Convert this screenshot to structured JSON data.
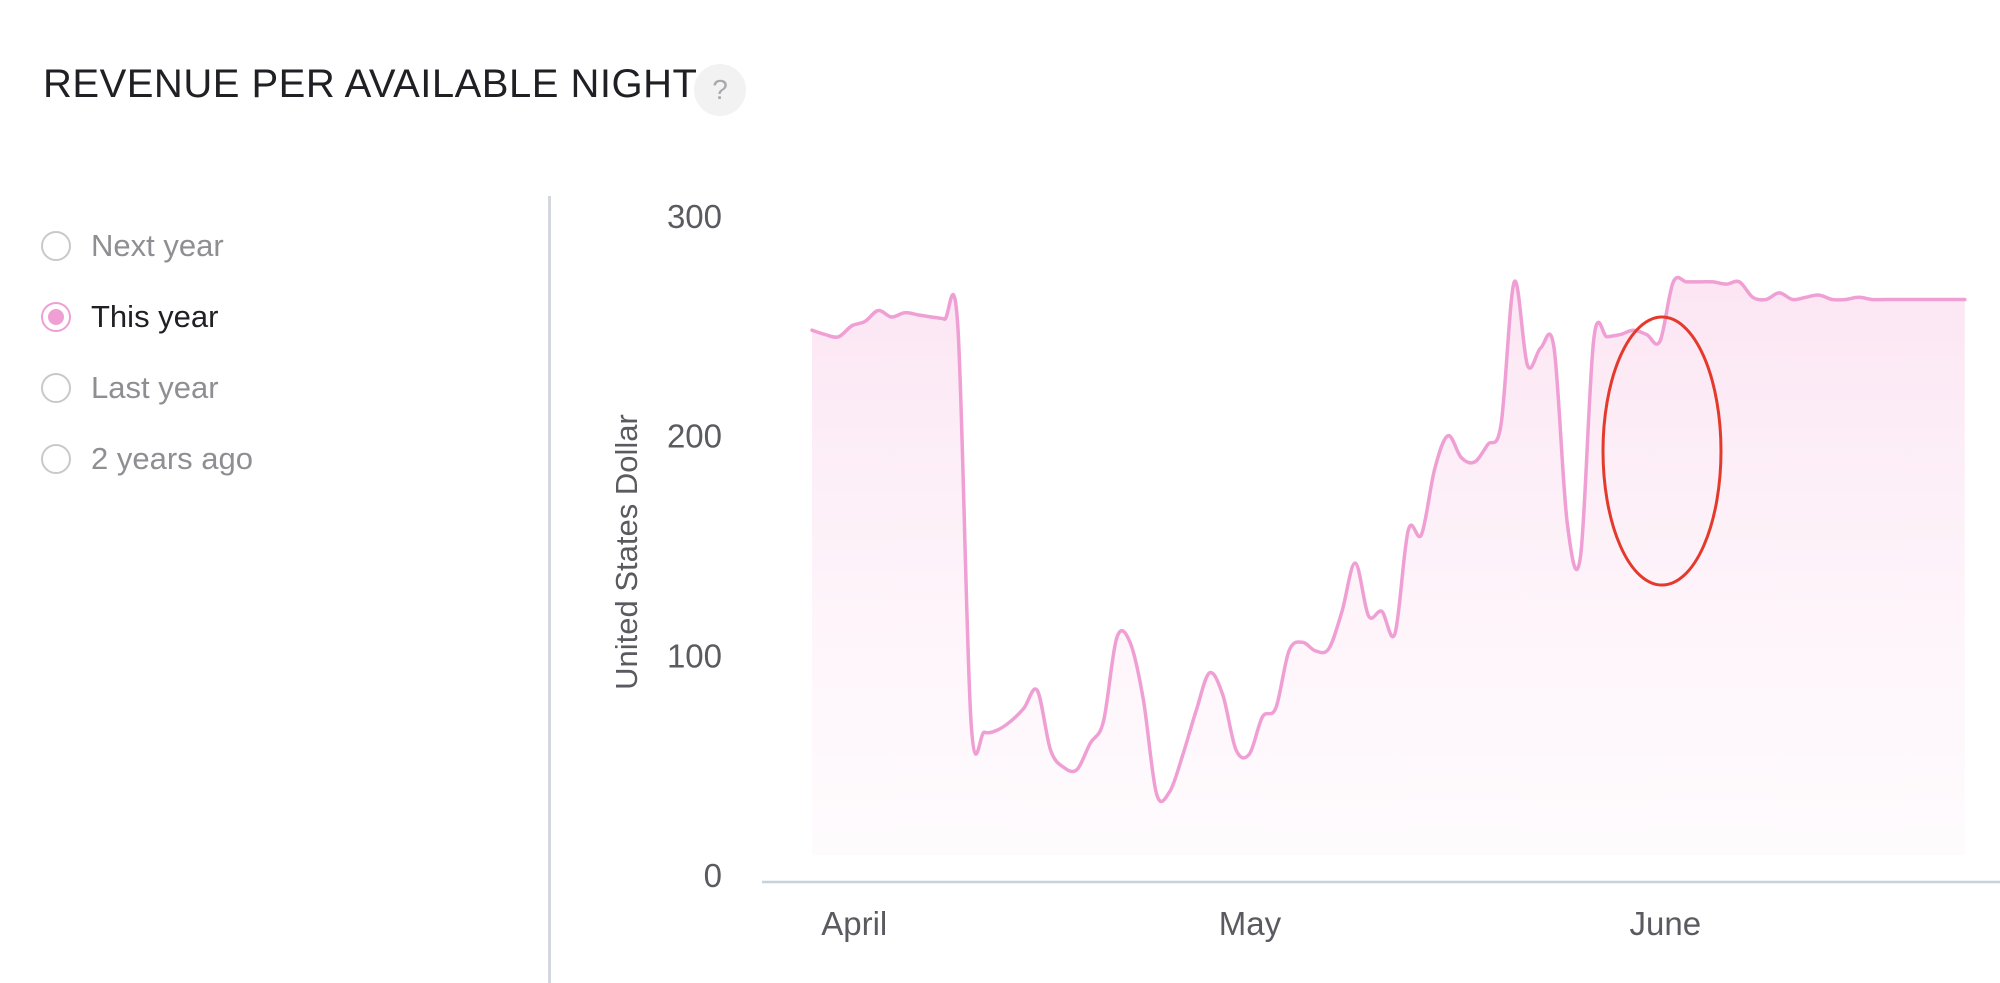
{
  "header": {
    "title": "REVENUE PER AVAILABLE NIGHT",
    "help_label": "?"
  },
  "legend": {
    "items": [
      {
        "label": "Next year",
        "selected": false
      },
      {
        "label": "This year",
        "selected": true
      },
      {
        "label": "Last year",
        "selected": false
      },
      {
        "label": "2 years ago",
        "selected": false
      }
    ]
  },
  "chart_data": {
    "type": "area",
    "title": "REVENUE PER AVAILABLE NIGHT",
    "ylabel": "United States Dollar",
    "xlabel": "",
    "ylim": [
      0,
      300
    ],
    "yticks": [
      0,
      100,
      200,
      300
    ],
    "xticks": [
      "April",
      "May",
      "June"
    ],
    "grid": false,
    "color": "#ef9fd3",
    "annotation": {
      "shape": "ellipse",
      "color": "#e43a2c",
      "around": "2022-06-03"
    },
    "series": [
      {
        "name": "This year",
        "x": [
          "2022-03-31",
          "2022-04-01",
          "2022-04-02",
          "2022-04-03",
          "2022-04-04",
          "2022-04-05",
          "2022-04-06",
          "2022-04-07",
          "2022-04-08",
          "2022-04-09",
          "2022-04-10",
          "2022-04-11",
          "2022-04-12",
          "2022-04-13",
          "2022-04-14",
          "2022-04-15",
          "2022-04-16",
          "2022-04-17",
          "2022-04-18",
          "2022-04-19",
          "2022-04-20",
          "2022-04-21",
          "2022-04-22",
          "2022-04-23",
          "2022-04-24",
          "2022-04-25",
          "2022-04-26",
          "2022-04-27",
          "2022-04-28",
          "2022-04-29",
          "2022-04-30",
          "2022-05-01",
          "2022-05-02",
          "2022-05-03",
          "2022-05-04",
          "2022-05-05",
          "2022-05-06",
          "2022-05-07",
          "2022-05-08",
          "2022-05-09",
          "2022-05-10",
          "2022-05-11",
          "2022-05-12",
          "2022-05-13",
          "2022-05-14",
          "2022-05-15",
          "2022-05-16",
          "2022-05-17",
          "2022-05-18",
          "2022-05-19",
          "2022-05-20",
          "2022-05-21",
          "2022-05-22",
          "2022-05-23",
          "2022-05-24",
          "2022-05-25",
          "2022-05-26",
          "2022-05-27",
          "2022-05-28",
          "2022-05-29",
          "2022-05-30",
          "2022-05-31",
          "2022-06-01",
          "2022-06-02",
          "2022-06-03",
          "2022-06-04",
          "2022-06-05",
          "2022-06-06",
          "2022-06-07",
          "2022-06-08",
          "2022-06-09",
          "2022-06-10",
          "2022-06-11",
          "2022-06-12",
          "2022-06-13",
          "2022-06-14",
          "2022-06-15",
          "2022-06-16",
          "2022-06-17",
          "2022-06-18",
          "2022-06-19",
          "2022-06-20",
          "2022-06-21",
          "2022-06-22",
          "2022-06-23",
          "2022-06-24",
          "2022-06-25",
          "2022-06-26"
        ],
        "values": [
          248,
          246,
          245,
          250,
          252,
          257,
          254,
          256,
          255,
          254,
          253,
          250,
          70,
          65,
          66,
          70,
          76,
          84,
          57,
          49,
          48,
          60,
          70,
          108,
          106,
          80,
          37,
          38,
          55,
          75,
          92,
          82,
          57,
          55,
          72,
          76,
          102,
          106,
          102,
          103,
          120,
          142,
          118,
          120,
          110,
          157,
          155,
          185,
          200,
          190,
          188,
          196,
          205,
          270,
          232,
          240,
          240,
          160,
          145,
          244,
          245,
          246,
          248,
          246,
          243,
          270,
          270,
          270,
          270,
          269,
          270,
          263,
          262,
          265,
          262,
          263,
          264,
          262,
          262,
          263,
          262,
          262,
          262,
          262,
          262,
          262,
          262,
          262
        ]
      }
    ]
  }
}
